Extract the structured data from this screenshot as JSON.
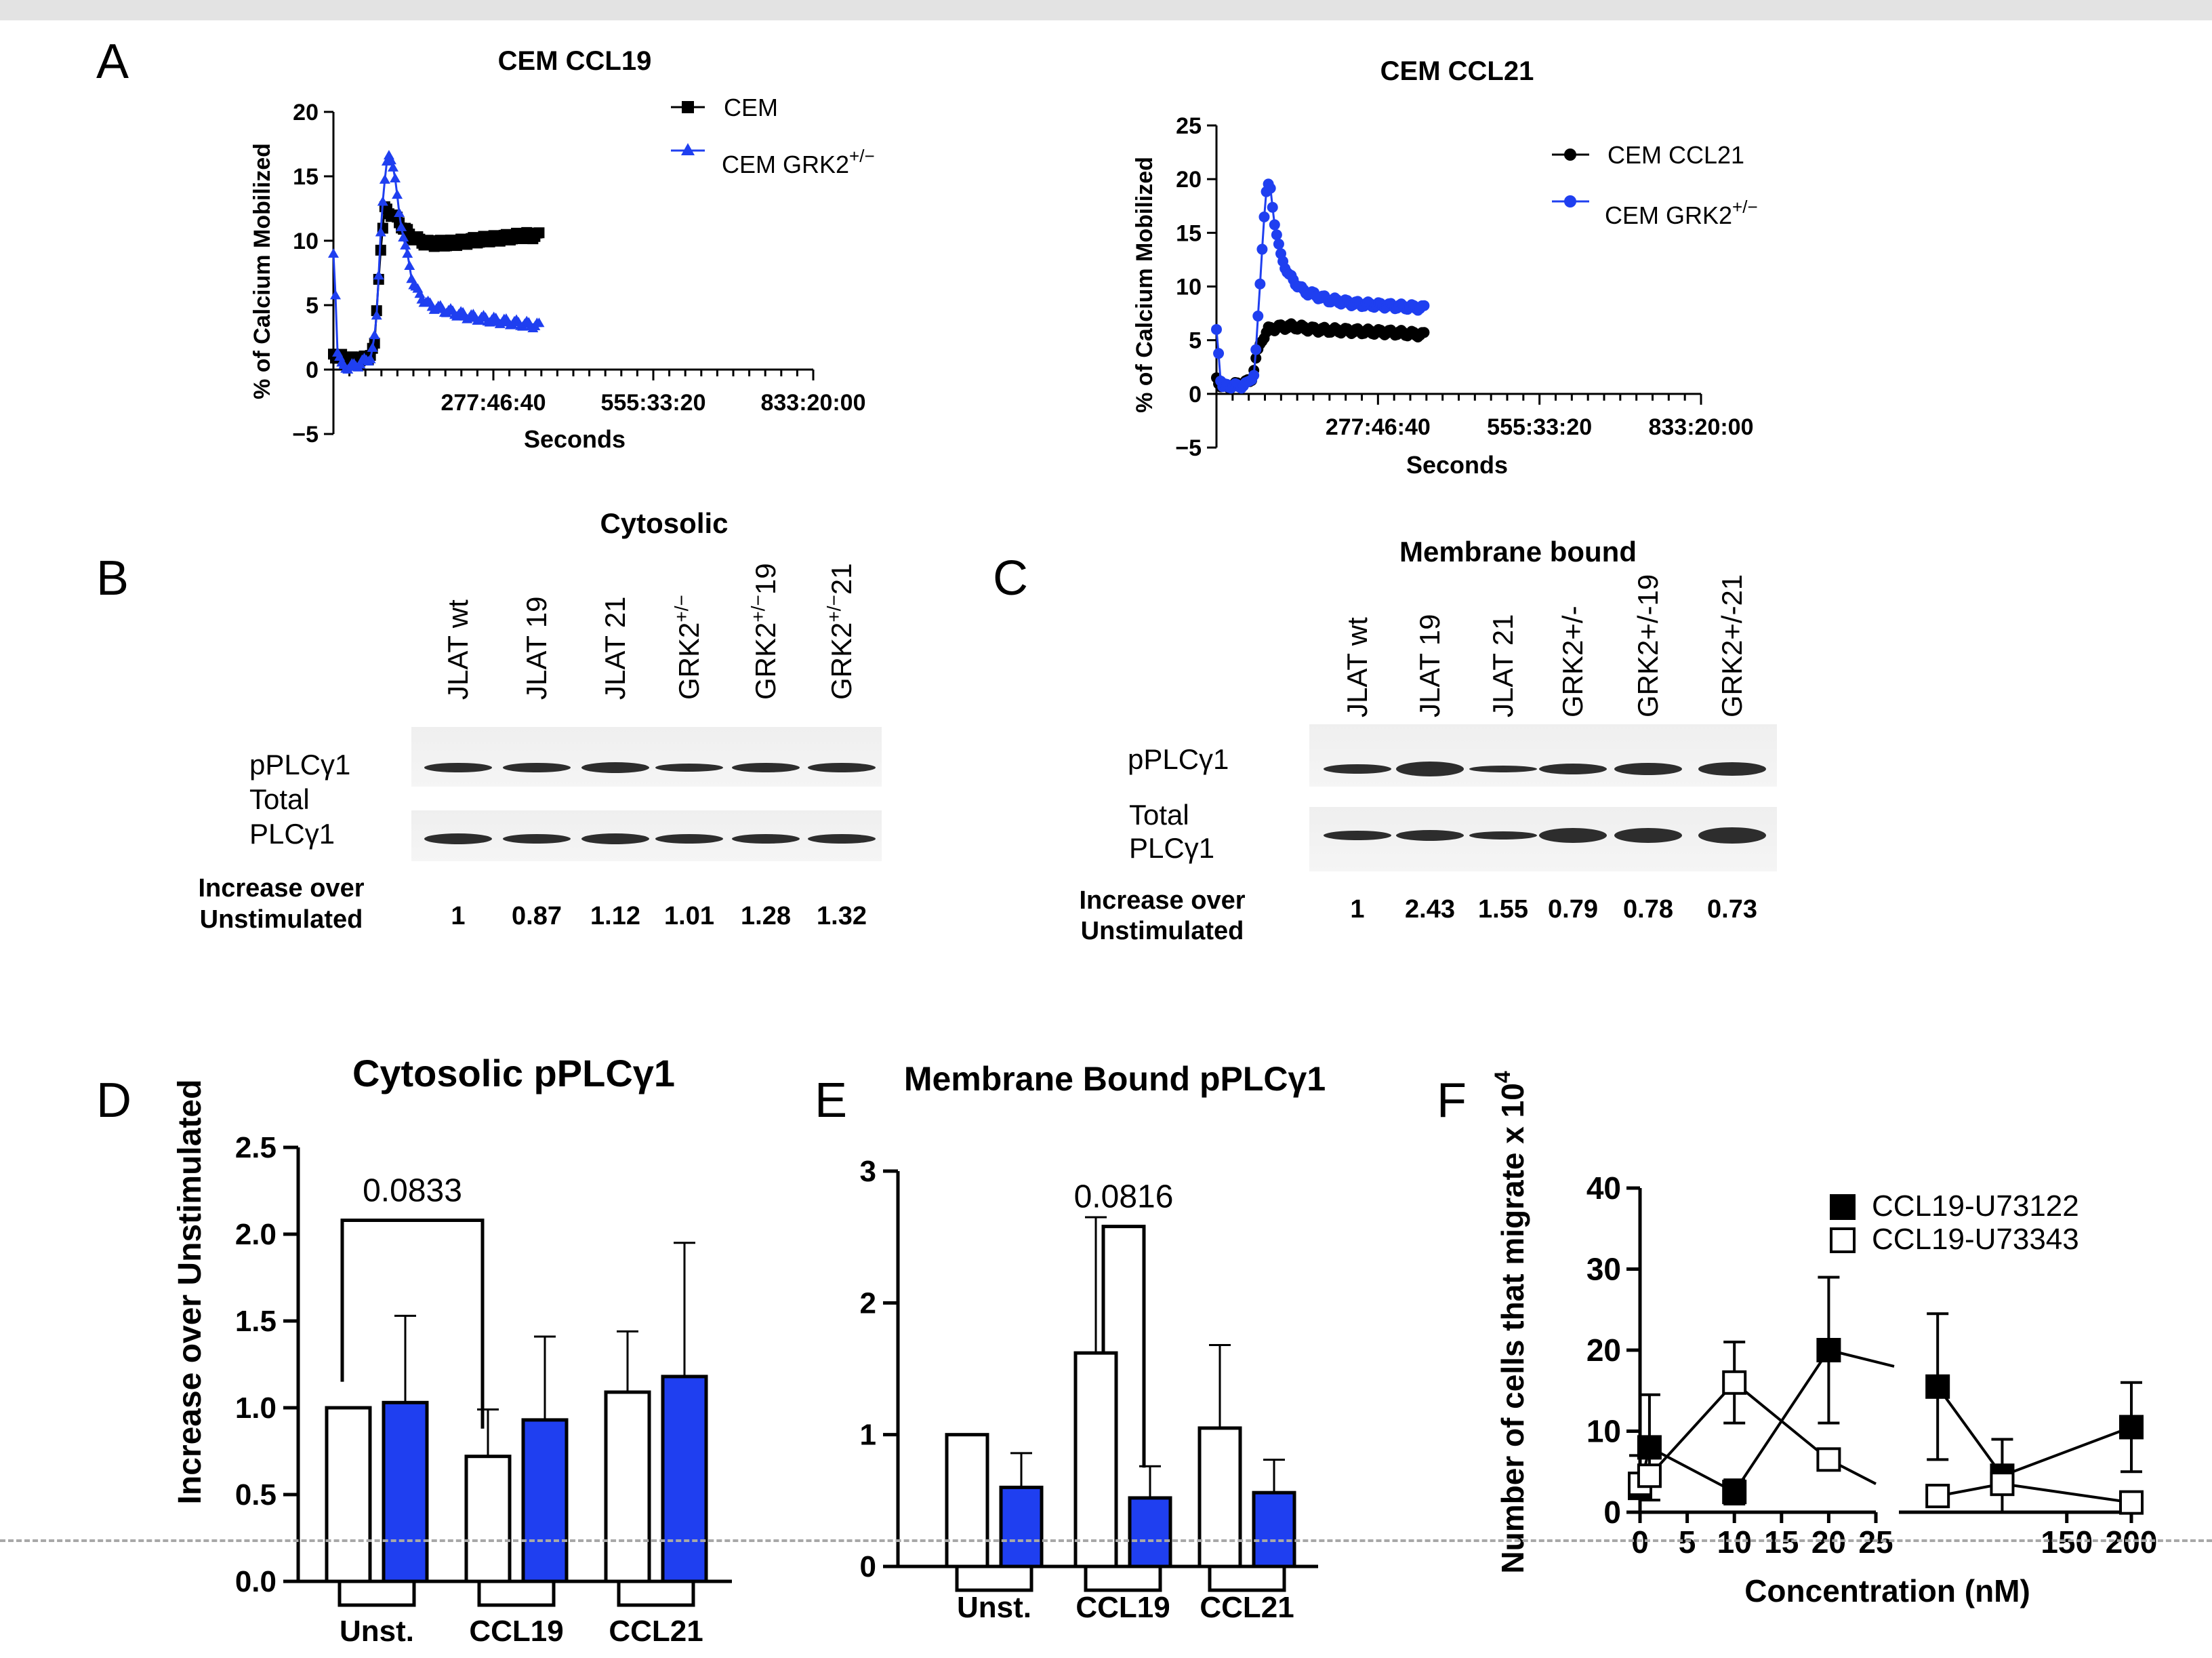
{
  "panel_labels": {
    "A": "A",
    "B": "B",
    "C": "C",
    "D": "D",
    "E": "E",
    "F": "F"
  },
  "panel_a": {
    "left_title": "CEM CCL19",
    "right_title": "CEM CCL21",
    "ylabel": "% of Calcium Mobilized",
    "xlabel": "Seconds",
    "x_ticks": [
      "277:46:40",
      "555:33:20",
      "833:20:00"
    ],
    "left_yticks": [
      "20",
      "15",
      "10",
      "5",
      "0",
      "−5"
    ],
    "right_yticks": [
      "25",
      "20",
      "15",
      "10",
      "5",
      "0",
      "−5"
    ],
    "left_legend": [
      "CEM",
      "CEM GRK2"
    ],
    "right_legend": [
      "CEM CCL21",
      "CEM GRK2"
    ],
    "superscript": "+/−"
  },
  "panel_b": {
    "title": "Cytosolic",
    "lanes": [
      "JLAT wt",
      "JLAT 19",
      "JLAT 21",
      "GRK2",
      "GRK2",
      "GRK2"
    ],
    "lane_sups": [
      "",
      "",
      "",
      "+/−",
      "+/−",
      "+/−"
    ],
    "lane_suffix": [
      "",
      "",
      "",
      "",
      "19",
      "21"
    ],
    "row1": "pPLCγ1",
    "row2a": "Total",
    "row2b": "PLCγ1",
    "inc1": "Increase over",
    "inc2": "Unstimulated",
    "values": [
      "1",
      "0.87",
      "1.12",
      "1.01",
      "1.28",
      "1.32"
    ]
  },
  "panel_c": {
    "title": "Membrane bound",
    "lanes": [
      "JLAT wt",
      "JLAT 19",
      "JLAT 21",
      "GRK2+/-",
      "GRK2+/-19",
      "GRK2+/-21"
    ],
    "row1": "pPLCγ1",
    "row2a": "Total",
    "row2b": "PLCγ1",
    "inc1": "Increase over",
    "inc2": "Unstimulated",
    "values": [
      "1",
      "2.43",
      "1.55",
      "0.79",
      "0.78",
      "0.73"
    ]
  },
  "colors": {
    "blue": "#1f3ff0",
    "black": "#000000",
    "grid": "#a8a8a8"
  },
  "chart_data": [
    {
      "id": "A-left",
      "type": "line",
      "title": "CEM CCL19",
      "xlabel": "Seconds",
      "ylabel": "% of Calcium Mobilized",
      "ylim": [
        -5,
        20
      ],
      "series": [
        {
          "name": "CEM",
          "color": "#000000",
          "marker": "square",
          "points": [
            [
              0,
              1.2
            ],
            [
              8,
              1.0
            ],
            [
              20,
              0.8
            ],
            [
              35,
              0.7
            ],
            [
              50,
              0.9
            ],
            [
              60,
              1.8
            ],
            [
              68,
              9
            ],
            [
              75,
              12.4
            ],
            [
              85,
              12.1
            ],
            [
              95,
              11.5
            ],
            [
              110,
              10.5
            ],
            [
              125,
              10.0
            ],
            [
              140,
              9.8
            ],
            [
              170,
              9.8
            ],
            [
              200,
              10.0
            ],
            [
              240,
              10.2
            ],
            [
              280,
              10.4
            ],
            [
              300,
              10.4
            ]
          ]
        },
        {
          "name": "CEM GRK2+/-",
          "color": "#1f3ff0",
          "marker": "triangle",
          "points": [
            [
              0,
              9
            ],
            [
              3,
              6
            ],
            [
              6,
              1.5
            ],
            [
              12,
              0.3
            ],
            [
              25,
              0.2
            ],
            [
              40,
              0.5
            ],
            [
              55,
              1
            ],
            [
              62,
              3
            ],
            [
              70,
              12
            ],
            [
              78,
              16
            ],
            [
              82,
              17
            ],
            [
              88,
              15.5
            ],
            [
              95,
              12.5
            ],
            [
              105,
              9.5
            ],
            [
              115,
              7
            ],
            [
              125,
              5.8
            ],
            [
              140,
              5
            ],
            [
              170,
              4.5
            ],
            [
              200,
              4.1
            ],
            [
              240,
              3.8
            ],
            [
              270,
              3.6
            ],
            [
              300,
              3.4
            ]
          ]
        }
      ]
    },
    {
      "id": "A-right",
      "type": "line",
      "title": "CEM CCL21",
      "xlabel": "Seconds",
      "ylabel": "% of Calcium Mobilized",
      "ylim": [
        -5,
        25
      ],
      "series": [
        {
          "name": "CEM CCL21",
          "color": "#000000",
          "marker": "circle",
          "points": [
            [
              0,
              1.5
            ],
            [
              8,
              0.6
            ],
            [
              25,
              0.8
            ],
            [
              40,
              1.0
            ],
            [
              50,
              1.2
            ],
            [
              58,
              3.5
            ],
            [
              65,
              5
            ],
            [
              75,
              6
            ],
            [
              90,
              6.2
            ],
            [
              110,
              6.3
            ],
            [
              140,
              6.0
            ],
            [
              180,
              5.9
            ],
            [
              220,
              5.8
            ],
            [
              260,
              5.7
            ],
            [
              300,
              5.5
            ]
          ]
        },
        {
          "name": "CEM GRK2+/-",
          "color": "#1f3ff0",
          "marker": "circle",
          "points": [
            [
              0,
              6
            ],
            [
              3,
              4
            ],
            [
              7,
              0.5
            ],
            [
              15,
              0.8
            ],
            [
              30,
              0.7
            ],
            [
              45,
              0.9
            ],
            [
              55,
              2
            ],
            [
              62,
              9
            ],
            [
              68,
              16
            ],
            [
              73,
              19.5
            ],
            [
              78,
              19
            ],
            [
              84,
              16
            ],
            [
              92,
              13
            ],
            [
              105,
              11
            ],
            [
              125,
              9.6
            ],
            [
              160,
              8.8
            ],
            [
              200,
              8.4
            ],
            [
              250,
              8.2
            ],
            [
              300,
              8.0
            ]
          ]
        }
      ]
    },
    {
      "id": "D",
      "type": "bar",
      "title": "Cytosolic pPLCγ1",
      "ylabel": "Increase over Unstimulated",
      "ylim": [
        0,
        2.5
      ],
      "yticks": [
        "0.0",
        "0.5",
        "1.0",
        "1.5",
        "2.0",
        "2.5"
      ],
      "categories": [
        "Unst.",
        "CCL19",
        "CCL21"
      ],
      "series": [
        {
          "name": "white",
          "color": "#ffffff",
          "values": [
            1.0,
            0.72,
            1.09
          ],
          "err": [
            0,
            0.27,
            0.35
          ]
        },
        {
          "name": "blue",
          "color": "#1f3ff0",
          "values": [
            1.03,
            0.93,
            1.18
          ],
          "err": [
            0.5,
            0.48,
            0.77
          ]
        }
      ],
      "annotation": "0.0833"
    },
    {
      "id": "E",
      "type": "bar",
      "title": "Membrane Bound pPLCγ1",
      "ylim": [
        0,
        3
      ],
      "yticks": [
        "0",
        "1",
        "2",
        "3"
      ],
      "categories": [
        "Unst.",
        "CCL19",
        "CCL21"
      ],
      "series": [
        {
          "name": "white",
          "color": "#ffffff",
          "values": [
            1.0,
            1.62,
            1.05
          ],
          "err": [
            0,
            1.03,
            0.63
          ]
        },
        {
          "name": "blue",
          "color": "#1f3ff0",
          "values": [
            0.6,
            0.52,
            0.56
          ],
          "err": [
            0.26,
            0.24,
            0.25
          ]
        }
      ],
      "annotation": "0.0816"
    },
    {
      "id": "F",
      "type": "line",
      "xlabel": "Concentration (nM)",
      "ylabel": "Number of cells that migrate x 10",
      "ylabel_sup": "4",
      "ylim": [
        0,
        40
      ],
      "yticks": [
        "0",
        "10",
        "20",
        "30",
        "40"
      ],
      "xticks_left": [
        "0",
        "5",
        "10",
        "15",
        "20",
        "25"
      ],
      "xticks_right": [
        "150",
        "200"
      ],
      "series": [
        {
          "name": "CCL19-U73122",
          "fill": "#000000",
          "left": [
            [
              0,
              3
            ],
            [
              1,
              8
            ],
            [
              10,
              2.5
            ],
            [
              20,
              20
            ]
          ],
          "left_err": [
            4,
            6.5,
            1.5,
            9
          ],
          "right": [
            [
              50,
              15.5
            ],
            [
              100,
              4.5
            ],
            [
              200,
              10.5
            ]
          ],
          "right_err": [
            9,
            4.5,
            5.5
          ]
        },
        {
          "name": "CCL19-U73343",
          "fill": "#ffffff",
          "left": [
            [
              0,
              3.5
            ],
            [
              1,
              4.5
            ],
            [
              10,
              16
            ],
            [
              20,
              6.5
            ]
          ],
          "left_err": [
            0,
            0,
            5,
            0
          ],
          "right": [
            [
              50,
              2
            ],
            [
              100,
              3.5
            ],
            [
              200,
              1.2
            ]
          ],
          "right_err": [
            0,
            0,
            0
          ]
        }
      ]
    }
  ]
}
